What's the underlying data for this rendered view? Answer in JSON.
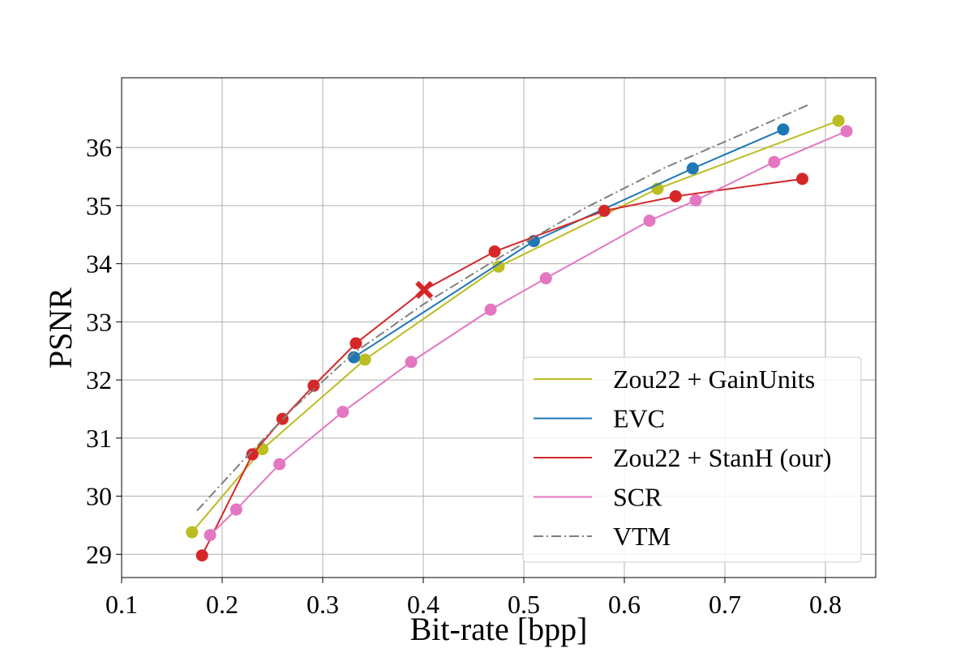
{
  "chart_data": {
    "type": "line",
    "title": "",
    "xlabel": "Bit-rate [bpp]",
    "ylabel": "PSNR",
    "xlim": [
      0.1,
      0.85
    ],
    "ylim": [
      28.6,
      37.2
    ],
    "xticks": [
      0.1,
      0.2,
      0.3,
      0.4,
      0.5,
      0.6,
      0.7,
      0.8
    ],
    "xtick_labels": [
      "0.1",
      "0.2",
      "0.3",
      "0.4",
      "0.5",
      "0.6",
      "0.7",
      "0.8"
    ],
    "yticks": [
      29,
      30,
      31,
      32,
      33,
      34,
      35,
      36
    ],
    "ytick_labels": [
      "29",
      "30",
      "31",
      "32",
      "33",
      "34",
      "35",
      "36"
    ],
    "grid": true,
    "legend_position": "lower-right",
    "series": [
      {
        "name": "Zou22 + GainUnits",
        "color": "#bcbd22",
        "style": "solid",
        "marker": "circle",
        "x": [
          0.17,
          0.24,
          0.342,
          0.475,
          0.633,
          0.813
        ],
        "y": [
          29.38,
          30.81,
          32.35,
          33.95,
          35.29,
          36.46
        ]
      },
      {
        "name": "EVC",
        "color": "#1f77b4",
        "style": "solid",
        "marker": "circle",
        "x": [
          0.331,
          0.51,
          0.668,
          0.758
        ],
        "y": [
          32.39,
          34.39,
          35.64,
          36.31
        ]
      },
      {
        "name": "Zou22 + StanH (our)",
        "color": "#d62728",
        "style": "solid",
        "marker": "circle",
        "x": [
          0.18,
          0.23,
          0.26,
          0.291,
          0.333,
          0.401,
          0.471,
          0.58,
          0.651,
          0.777
        ],
        "y": [
          28.98,
          30.72,
          31.33,
          31.9,
          32.63,
          33.55,
          34.21,
          34.91,
          35.16,
          35.46
        ],
        "special_marker": {
          "x": 0.401,
          "y": 33.55,
          "shape": "x"
        }
      },
      {
        "name": "SCR",
        "color": "#e377c2",
        "style": "solid",
        "marker": "circle",
        "x": [
          0.188,
          0.214,
          0.257,
          0.32,
          0.388,
          0.467,
          0.522,
          0.625,
          0.671,
          0.749,
          0.821
        ],
        "y": [
          29.33,
          29.77,
          30.55,
          31.45,
          32.31,
          33.21,
          33.75,
          34.74,
          35.09,
          35.75,
          36.28
        ]
      },
      {
        "name": "VTM",
        "color": "#7f7f7f",
        "style": "dashdot",
        "marker": "none",
        "x": [
          0.175,
          0.22,
          0.27,
          0.33,
          0.4,
          0.48,
          0.56,
          0.64,
          0.72,
          0.785
        ],
        "y": [
          29.75,
          30.6,
          31.5,
          32.45,
          33.3,
          34.15,
          34.95,
          35.65,
          36.25,
          36.75
        ]
      }
    ]
  }
}
